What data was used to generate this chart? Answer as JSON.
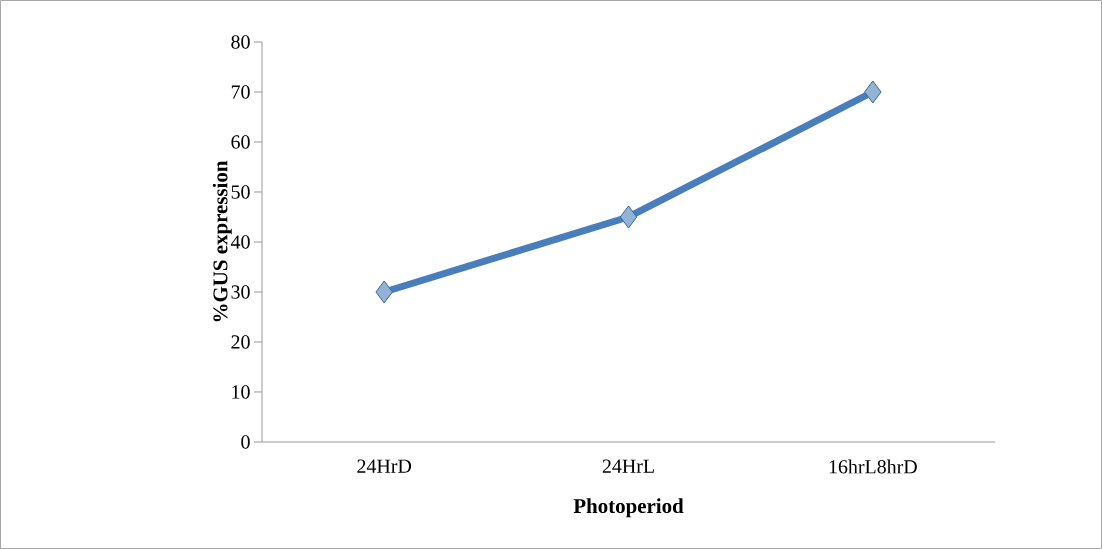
{
  "chart_data": {
    "type": "line",
    "xlabel": "Photoperiod",
    "ylabel": "%GUS expression",
    "categories": [
      "24HrD",
      "24HrL",
      "16hrL8hrD"
    ],
    "values": [
      30,
      45,
      70
    ],
    "color": "#4a7ebb",
    "marker": "diamond",
    "ylim": [
      0,
      80
    ],
    "yticks": [
      0,
      10,
      20,
      30,
      40,
      50,
      60,
      70,
      80
    ]
  }
}
